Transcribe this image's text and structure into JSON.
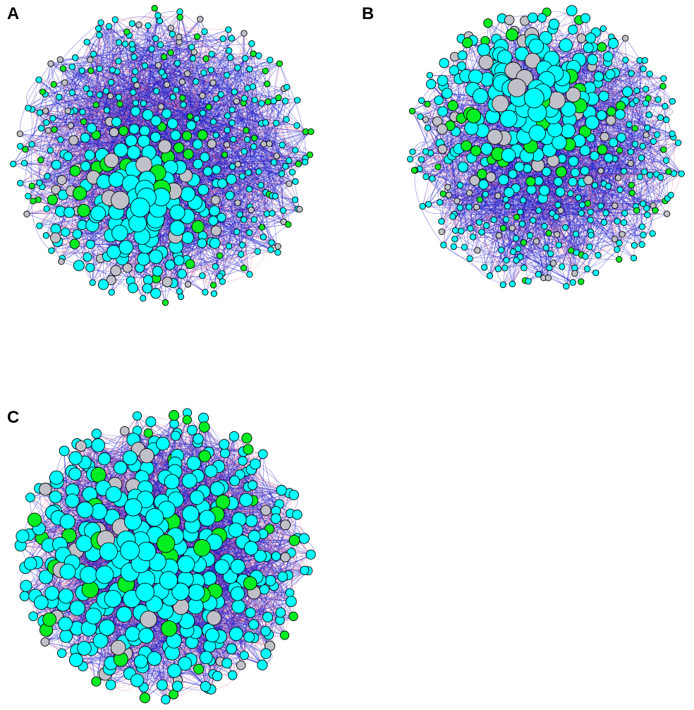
{
  "figure": {
    "panels": [
      {
        "id": "a",
        "label": "A"
      },
      {
        "id": "b",
        "label": "B"
      },
      {
        "id": "c",
        "label": "C"
      }
    ],
    "colors": {
      "node_cyan": "#00ffff",
      "node_green": "#00ee22",
      "node_gray": "#c0c0c8",
      "node_outline": "#000000",
      "edge_blue": "#1a1acc",
      "edge_red": "#e8506e"
    }
  }
}
